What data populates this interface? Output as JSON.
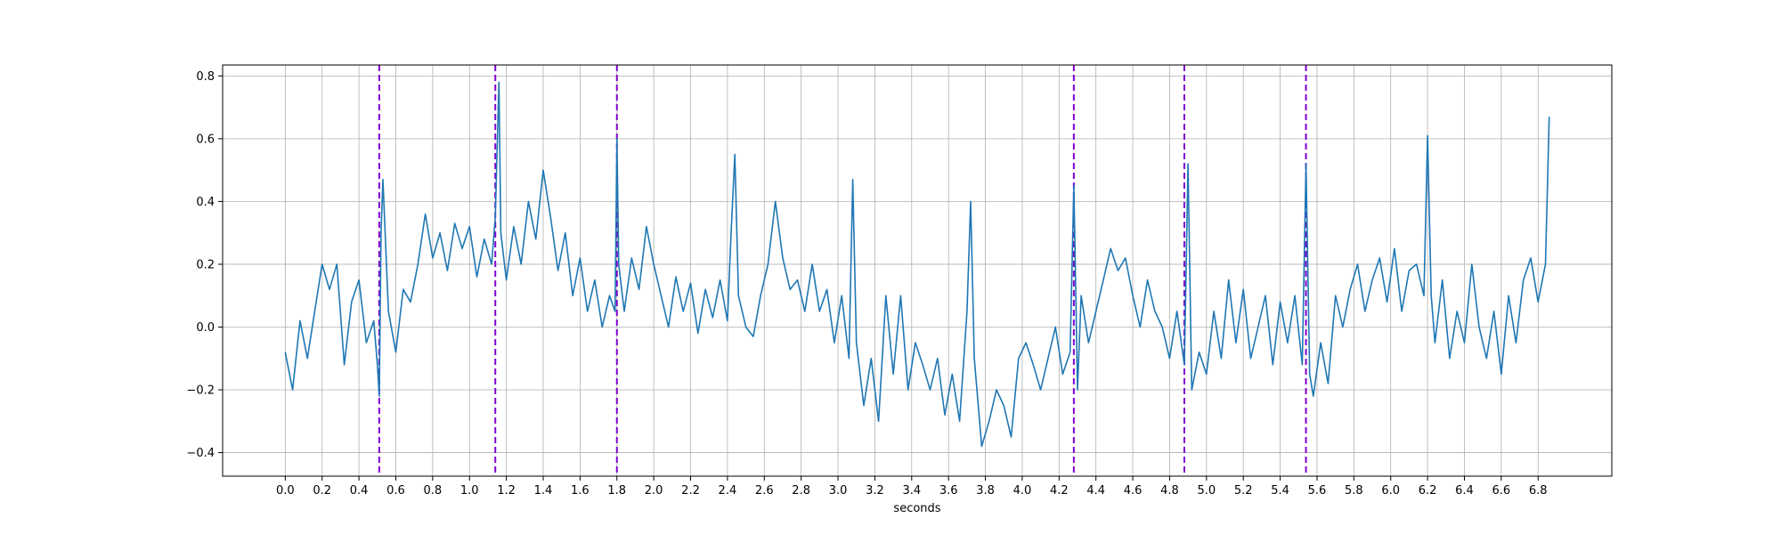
{
  "chart_data": {
    "type": "line",
    "title": "",
    "xlabel": "seconds",
    "ylabel": "",
    "xlim": [
      -0.34,
      7.2
    ],
    "ylim": [
      -0.475,
      0.835
    ],
    "x_ticks": [
      0.0,
      0.2,
      0.4,
      0.6,
      0.8,
      1.0,
      1.2,
      1.4,
      1.6,
      1.8,
      2.0,
      2.2,
      2.4,
      2.6,
      2.8,
      3.0,
      3.2,
      3.4,
      3.6,
      3.8,
      4.0,
      4.2,
      4.4,
      4.6,
      4.8,
      5.0,
      5.2,
      5.4,
      5.6,
      5.8,
      6.0,
      6.2,
      6.4,
      6.6,
      6.8
    ],
    "x_tick_labels": [
      "0.0",
      "0.2",
      "0.4",
      "0.6",
      "0.8",
      "1.0",
      "1.2",
      "1.4",
      "1.6",
      "1.8",
      "2.0",
      "2.2",
      "2.4",
      "2.6",
      "2.8",
      "3.0",
      "3.2",
      "3.4",
      "3.6",
      "3.8",
      "4.0",
      "4.2",
      "4.4",
      "4.6",
      "4.8",
      "5.0",
      "5.2",
      "5.4",
      "5.6",
      "5.8",
      "6.0",
      "6.2",
      "6.4",
      "6.6",
      "6.8"
    ],
    "y_ticks": [
      -0.4,
      -0.2,
      0.0,
      0.2,
      0.4,
      0.6,
      0.8
    ],
    "y_tick_labels": [
      "−0.4",
      "−0.2",
      "0.0",
      "0.2",
      "0.4",
      "0.6",
      "0.8"
    ],
    "grid": true,
    "legend": "none",
    "line_color": "#1f77b4",
    "vline_color": "#8000d0",
    "vlines": [
      0.51,
      1.14,
      1.8,
      4.28,
      4.88,
      5.54
    ],
    "series": [
      {
        "x": [
          0.0,
          0.04,
          0.08,
          0.12,
          0.16,
          0.2,
          0.24,
          0.28,
          0.32,
          0.36,
          0.4,
          0.44,
          0.48,
          0.5,
          0.51,
          0.52,
          0.53,
          0.56,
          0.6,
          0.64,
          0.68,
          0.72,
          0.76,
          0.8,
          0.84,
          0.88,
          0.92,
          0.96,
          1.0,
          1.04,
          1.08,
          1.12,
          1.14,
          1.16,
          1.17,
          1.2,
          1.24,
          1.28,
          1.32,
          1.36,
          1.4,
          1.44,
          1.48,
          1.52,
          1.56,
          1.6,
          1.64,
          1.68,
          1.72,
          1.76,
          1.79,
          1.8,
          1.81,
          1.84,
          1.88,
          1.92,
          1.96,
          2.0,
          2.04,
          2.08,
          2.12,
          2.16,
          2.2,
          2.24,
          2.28,
          2.32,
          2.36,
          2.4,
          2.42,
          2.44,
          2.46,
          2.5,
          2.54,
          2.58,
          2.62,
          2.66,
          2.7,
          2.74,
          2.78,
          2.82,
          2.86,
          2.9,
          2.94,
          2.98,
          3.02,
          3.06,
          3.08,
          3.1,
          3.14,
          3.18,
          3.22,
          3.26,
          3.3,
          3.34,
          3.38,
          3.42,
          3.46,
          3.5,
          3.54,
          3.58,
          3.62,
          3.66,
          3.7,
          3.72,
          3.74,
          3.78,
          3.82,
          3.86,
          3.9,
          3.94,
          3.98,
          4.02,
          4.06,
          4.1,
          4.14,
          4.18,
          4.22,
          4.26,
          4.28,
          4.3,
          4.32,
          4.36,
          4.4,
          4.44,
          4.48,
          4.52,
          4.56,
          4.6,
          4.64,
          4.68,
          4.72,
          4.76,
          4.8,
          4.84,
          4.88,
          4.9,
          4.92,
          4.96,
          5.0,
          5.04,
          5.08,
          5.12,
          5.16,
          5.2,
          5.24,
          5.28,
          5.32,
          5.36,
          5.4,
          5.44,
          5.48,
          5.52,
          5.54,
          5.56,
          5.58,
          5.62,
          5.66,
          5.7,
          5.74,
          5.78,
          5.82,
          5.86,
          5.9,
          5.94,
          5.98,
          6.02,
          6.06,
          6.1,
          6.14,
          6.18,
          6.2,
          6.22,
          6.24,
          6.28,
          6.32,
          6.36,
          6.4,
          6.44,
          6.48,
          6.52,
          6.56,
          6.6,
          6.64,
          6.68,
          6.72,
          6.76,
          6.8,
          6.84,
          6.86
        ],
        "y": [
          -0.08,
          -0.2,
          0.02,
          -0.1,
          0.05,
          0.2,
          0.12,
          0.2,
          -0.12,
          0.08,
          0.15,
          -0.05,
          0.02,
          -0.12,
          -0.22,
          0.3,
          0.47,
          0.05,
          -0.08,
          0.12,
          0.08,
          0.2,
          0.36,
          0.22,
          0.3,
          0.18,
          0.33,
          0.25,
          0.32,
          0.16,
          0.28,
          0.2,
          0.35,
          0.78,
          0.3,
          0.15,
          0.32,
          0.2,
          0.4,
          0.28,
          0.5,
          0.35,
          0.18,
          0.3,
          0.1,
          0.22,
          0.05,
          0.15,
          0.0,
          0.1,
          0.05,
          0.6,
          0.2,
          0.05,
          0.22,
          0.12,
          0.32,
          0.2,
          0.1,
          0.0,
          0.16,
          0.05,
          0.14,
          -0.02,
          0.12,
          0.03,
          0.15,
          0.02,
          0.3,
          0.55,
          0.1,
          0.0,
          -0.03,
          0.1,
          0.2,
          0.4,
          0.22,
          0.12,
          0.15,
          0.05,
          0.2,
          0.05,
          0.12,
          -0.05,
          0.1,
          -0.1,
          0.47,
          -0.05,
          -0.25,
          -0.1,
          -0.3,
          0.1,
          -0.15,
          0.1,
          -0.2,
          -0.05,
          -0.12,
          -0.2,
          -0.1,
          -0.28,
          -0.15,
          -0.3,
          0.05,
          0.4,
          -0.1,
          -0.38,
          -0.3,
          -0.2,
          -0.25,
          -0.35,
          -0.1,
          -0.05,
          -0.12,
          -0.2,
          -0.1,
          0.0,
          -0.15,
          -0.08,
          0.45,
          -0.2,
          0.1,
          -0.05,
          0.05,
          0.15,
          0.25,
          0.18,
          0.22,
          0.1,
          0.0,
          0.15,
          0.05,
          0.0,
          -0.1,
          0.05,
          -0.12,
          0.52,
          -0.2,
          -0.08,
          -0.15,
          0.05,
          -0.1,
          0.15,
          -0.05,
          0.12,
          -0.1,
          0.0,
          0.1,
          -0.12,
          0.08,
          -0.05,
          0.1,
          -0.12,
          0.52,
          -0.15,
          -0.22,
          -0.05,
          -0.18,
          0.1,
          0.0,
          0.12,
          0.2,
          0.05,
          0.15,
          0.22,
          0.08,
          0.25,
          0.05,
          0.18,
          0.2,
          0.1,
          0.61,
          0.1,
          -0.05,
          0.15,
          -0.1,
          0.05,
          -0.05,
          0.2,
          0.0,
          -0.1,
          0.05,
          -0.15,
          0.1,
          -0.05,
          0.15,
          0.22,
          0.08,
          0.2,
          0.67
        ]
      }
    ]
  }
}
